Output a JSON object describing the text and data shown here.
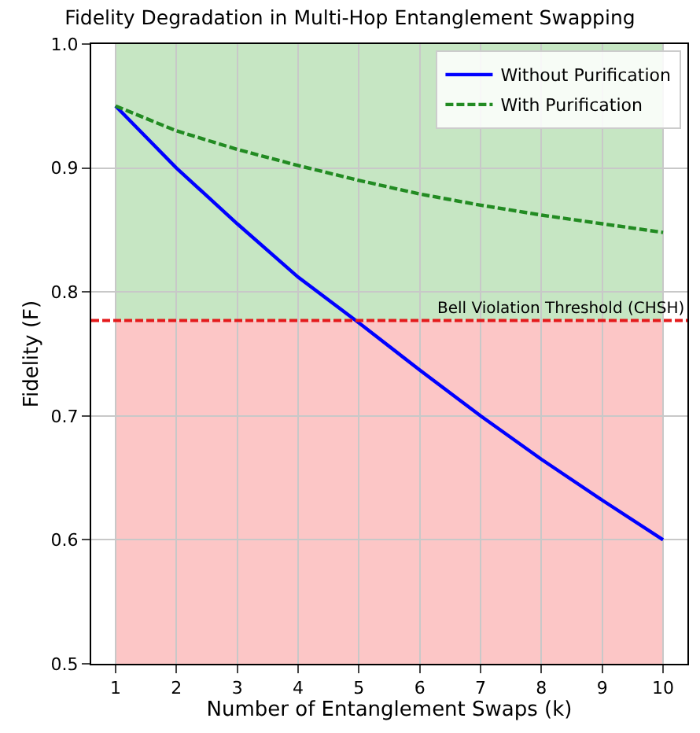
{
  "chart_data": {
    "type": "line",
    "title": "Fidelity Degradation in Multi-Hop Entanglement Swapping",
    "xlabel": "Number of Entanglement Swaps (k)",
    "ylabel": "Fidelity (F)",
    "x": [
      1,
      2,
      3,
      4,
      5,
      6,
      7,
      8,
      9,
      10
    ],
    "series": [
      {
        "name": "Without Purification",
        "color": "#0000ff",
        "line_style": "solid",
        "values": [
          0.95,
          0.9,
          0.855,
          0.812,
          0.775,
          0.737,
          0.7,
          0.665,
          0.632,
          0.6
        ]
      },
      {
        "name": "With Purification",
        "color": "#228b22",
        "line_style": "dashed",
        "values": [
          0.95,
          0.93,
          0.915,
          0.902,
          0.89,
          0.879,
          0.87,
          0.862,
          0.855,
          0.848
        ]
      }
    ],
    "xlim": [
      0.6,
      10.4
    ],
    "ylim": [
      0.5,
      1.0
    ],
    "xticks": [
      1,
      2,
      3,
      4,
      5,
      6,
      7,
      8,
      9,
      10
    ],
    "yticks": [
      {
        "value": 0.5,
        "label": "0.5"
      },
      {
        "value": 0.6,
        "label": "0.6"
      },
      {
        "value": 0.7,
        "label": "0.7"
      },
      {
        "value": 0.8,
        "label": "0.8"
      },
      {
        "value": 0.9,
        "label": "0.9"
      },
      {
        "value": 1.0,
        "label": "1.0"
      }
    ],
    "ref_lines": [
      {
        "axis": "y",
        "value": 0.777,
        "label": "Bell Violation Threshold (CHSH)",
        "color": "#e41a1c",
        "line_style": "dashed"
      }
    ],
    "bands": [
      {
        "axis": "y",
        "from": 0.777,
        "to": 1.0,
        "color": "#c6e6c3"
      },
      {
        "axis": "y",
        "from": 0.5,
        "to": 0.777,
        "color": "#fcc6c6"
      }
    ],
    "grid": true,
    "legend": "top right",
    "marker": "none"
  }
}
